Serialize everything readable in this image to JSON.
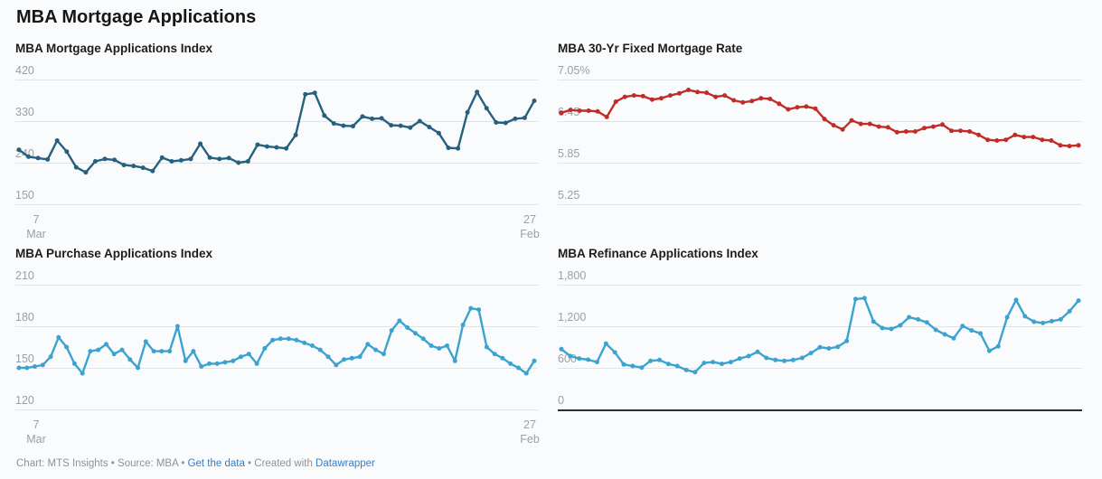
{
  "page": {
    "title": "MBA Mortgage Applications",
    "background": "#fafbfc"
  },
  "footer": {
    "text1": "Chart: MTS Insights • Source: MBA • ",
    "link1": "Get the data",
    "text2": " • Created with ",
    "link2": "Datawrapper",
    "link_color": "#3a7cc4"
  },
  "colors": {
    "grid": "#e2e3e4",
    "axis_text": "#9aa0a5",
    "baseline": "#2f2f2f"
  },
  "chart_data": [
    {
      "type": "line",
      "title": "MBA Mortgage Applications Index",
      "color": "#25607f",
      "y_ticks": [
        "420",
        "330",
        "240",
        "150"
      ],
      "y_top": 420,
      "y_bottom": 150,
      "ylim": [
        150,
        420
      ],
      "x_axis": {
        "start_day": "7",
        "start_month": "Mar",
        "end_day": "27",
        "end_month": "Feb"
      },
      "values": [
        268,
        253,
        250,
        247,
        288,
        264,
        230,
        219,
        243,
        248,
        246,
        235,
        233,
        229,
        222,
        251,
        243,
        245,
        248,
        281,
        251,
        248,
        250,
        240,
        243,
        279,
        275,
        273,
        271,
        300,
        388,
        391,
        342,
        325,
        320,
        319,
        340,
        335,
        336,
        321,
        320,
        316,
        330,
        317,
        304,
        272,
        271,
        349,
        393,
        358,
        327,
        326,
        335,
        337,
        374
      ]
    },
    {
      "type": "line",
      "title": "MBA 30-Yr Fixed Mortgage Rate",
      "color": "#c02d28",
      "y_ticks": [
        "7.05%",
        "6.45",
        "5.85",
        "5.25"
      ],
      "y_top": 7.05,
      "y_bottom": 5.25,
      "ylim": [
        5.25,
        7.05
      ],
      "x_axis": null,
      "values": [
        6.57,
        6.61,
        6.6,
        6.6,
        6.59,
        6.51,
        6.73,
        6.8,
        6.82,
        6.81,
        6.76,
        6.78,
        6.82,
        6.85,
        6.9,
        6.87,
        6.86,
        6.8,
        6.82,
        6.75,
        6.72,
        6.74,
        6.78,
        6.77,
        6.7,
        6.62,
        6.65,
        6.66,
        6.63,
        6.48,
        6.39,
        6.33,
        6.46,
        6.41,
        6.41,
        6.37,
        6.36,
        6.29,
        6.3,
        6.3,
        6.35,
        6.37,
        6.4,
        6.31,
        6.31,
        6.3,
        6.25,
        6.18,
        6.17,
        6.18,
        6.25,
        6.22,
        6.22,
        6.18,
        6.17,
        6.1,
        6.09,
        6.1
      ]
    },
    {
      "type": "line",
      "title": "MBA Purchase Applications Index",
      "color": "#3ca3d0",
      "y_ticks": [
        "210",
        "180",
        "150",
        "120"
      ],
      "y_top": 210,
      "y_bottom": 120,
      "ylim": [
        120,
        210
      ],
      "x_axis": {
        "start_day": "7",
        "start_month": "Mar",
        "end_day": "27",
        "end_month": "Feb"
      },
      "values": [
        150,
        150,
        151,
        152,
        158,
        172,
        165,
        153,
        146,
        162,
        163,
        167,
        160,
        163,
        156,
        150,
        169,
        162,
        162,
        162,
        180,
        155,
        162,
        151,
        153,
        153,
        154,
        155,
        158,
        160,
        153,
        164,
        170,
        171,
        171,
        170,
        168,
        166,
        163,
        158,
        152,
        156,
        157,
        158,
        167,
        163,
        160,
        177,
        184,
        179,
        175,
        171,
        166,
        164,
        166,
        155,
        181,
        193,
        192,
        165,
        160,
        157,
        153,
        150,
        146,
        155
      ]
    },
    {
      "type": "line",
      "title": "MBA Refinance Applications Index",
      "color": "#3ca3d0",
      "y_ticks": [
        "1,800",
        "1,200",
        "600",
        "0"
      ],
      "y_top": 1800,
      "y_bottom": 0,
      "ylim": [
        0,
        1800
      ],
      "zero_baseline": true,
      "x_axis": null,
      "values": [
        870,
        770,
        735,
        718,
        683,
        950,
        823,
        648,
        626,
        604,
        700,
        713,
        656,
        626,
        569,
        538,
        670,
        683,
        657,
        683,
        735,
        770,
        831,
        744,
        713,
        700,
        713,
        744,
        814,
        898,
        880,
        902,
        988,
        1593,
        1606,
        1269,
        1174,
        1161,
        1213,
        1330,
        1299,
        1256,
        1148,
        1083,
        1027,
        1204,
        1140,
        1097,
        845,
        910,
        1330,
        1580,
        1343,
        1265,
        1247,
        1273,
        1299,
        1416,
        1570
      ]
    }
  ]
}
